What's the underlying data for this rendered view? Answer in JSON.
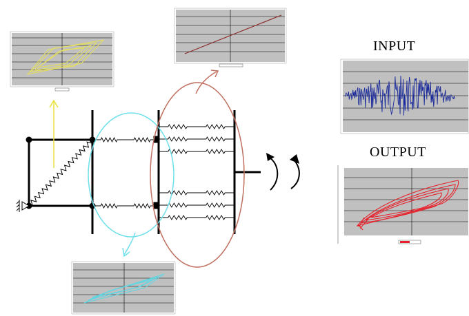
{
  "labels": {
    "input": "INPUT",
    "output": "OUTPUT"
  },
  "colors": {
    "plot_bg": "#c0c0c0",
    "grid": "#000000",
    "yellow_loop": "#e6e05a",
    "brown_line": "#8b2a2a",
    "cyan_loop": "#5fd6e3",
    "red_loop": "#e8202a",
    "blue_signal": "#1a2a9a",
    "yellow_arrow": "#e8e040",
    "cyan_ellipse": "#6fe0ea",
    "red_ellipse": "#c07060",
    "structure": "#000000"
  },
  "icons": [
    "fixed-support-icon",
    "rotation-arrow-left-icon",
    "rotation-arrow-right-icon"
  ]
}
